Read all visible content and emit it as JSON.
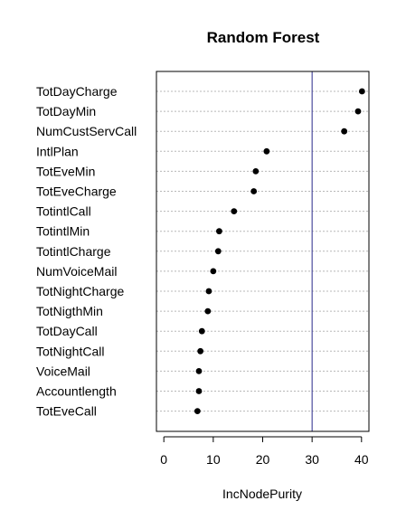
{
  "chart_data": {
    "type": "scatter",
    "title": "Random Forest",
    "xlabel": "IncNodePurity",
    "ylabel": "",
    "xlim": [
      -1.5,
      41.5
    ],
    "xticks": [
      0,
      10,
      20,
      30,
      40
    ],
    "tick_labels": [
      "0",
      "10",
      "20",
      "30",
      "40"
    ],
    "reference_line": {
      "x": 30,
      "color": "#2a2a8a"
    },
    "grid": true,
    "series": [
      {
        "categories": [
          "TotDayCharge",
          "TotDayMin",
          "NumCustServCall",
          "IntlPlan",
          "TotEveMin",
          "TotEveCharge",
          "TotintlCall",
          "TotintlMin",
          "TotintlCharge",
          "NumVoiceMail",
          "TotNightCharge",
          "TotNigthMin",
          "TotDayCall",
          "TotNightCall",
          "VoiceMail",
          "Accountlength",
          "TotEveCall"
        ],
        "values": [
          40.1,
          39.3,
          36.5,
          20.8,
          18.6,
          18.2,
          14.2,
          11.2,
          11.0,
          10.0,
          9.1,
          8.9,
          7.7,
          7.4,
          7.1,
          7.1,
          6.8
        ]
      }
    ]
  }
}
